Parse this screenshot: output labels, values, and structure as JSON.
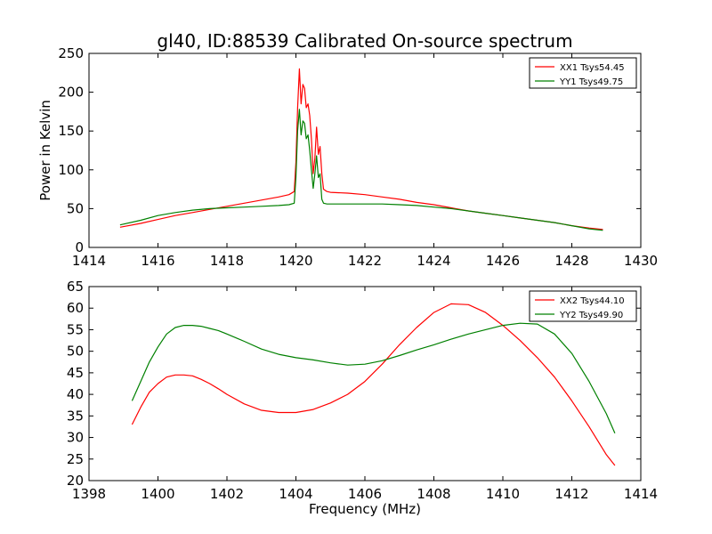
{
  "figure": {
    "title": "gl40, ID:88539 Calibrated On-source spectrum"
  },
  "colors": {
    "xx": "#ff0000",
    "yy": "#008000"
  },
  "chart_data": [
    {
      "type": "line",
      "title": "gl40, ID:88539 Calibrated On-source spectrum",
      "xlabel": "",
      "ylabel": "Power in Kelvin",
      "xlim": [
        1414,
        1430
      ],
      "ylim": [
        0,
        250
      ],
      "xticks": [
        1414,
        1416,
        1418,
        1420,
        1422,
        1424,
        1426,
        1428,
        1430
      ],
      "yticks": [
        0,
        50,
        100,
        150,
        200,
        250
      ],
      "grid": false,
      "legend": "top-right",
      "series": [
        {
          "name": "XX1 Tsys54.45",
          "color": "#ff0000",
          "x": [
            1414.9,
            1415.5,
            1416.0,
            1416.5,
            1417.0,
            1417.5,
            1418.0,
            1418.5,
            1419.0,
            1419.5,
            1419.8,
            1419.95,
            1420.0,
            1420.05,
            1420.1,
            1420.15,
            1420.2,
            1420.25,
            1420.3,
            1420.35,
            1420.4,
            1420.45,
            1420.5,
            1420.55,
            1420.6,
            1420.65,
            1420.7,
            1420.75,
            1420.8,
            1420.9,
            1421.0,
            1421.5,
            1422.0,
            1422.5,
            1423.0,
            1423.5,
            1424.0,
            1424.5,
            1425.0,
            1425.5,
            1426.0,
            1426.5,
            1427.0,
            1427.5,
            1428.0,
            1428.5,
            1428.9
          ],
          "y": [
            26,
            31,
            36,
            41,
            45,
            49,
            53,
            57,
            61,
            65,
            68,
            72,
            110,
            180,
            230,
            185,
            210,
            205,
            180,
            185,
            170,
            140,
            95,
            115,
            155,
            120,
            130,
            95,
            75,
            72,
            71,
            70,
            68,
            65,
            62,
            58,
            55,
            51,
            47,
            44,
            41,
            38,
            35,
            32,
            28,
            25,
            23
          ]
        },
        {
          "name": "YY1 Tsys49.75",
          "color": "#008000",
          "x": [
            1414.9,
            1415.5,
            1416.0,
            1416.5,
            1417.0,
            1417.5,
            1418.0,
            1418.5,
            1419.0,
            1419.5,
            1419.8,
            1419.95,
            1420.0,
            1420.05,
            1420.1,
            1420.15,
            1420.2,
            1420.25,
            1420.3,
            1420.35,
            1420.4,
            1420.45,
            1420.5,
            1420.55,
            1420.6,
            1420.65,
            1420.7,
            1420.75,
            1420.8,
            1420.9,
            1421.0,
            1421.5,
            1422.0,
            1422.5,
            1423.0,
            1423.5,
            1424.0,
            1424.5,
            1425.0,
            1425.5,
            1426.0,
            1426.5,
            1427.0,
            1427.5,
            1428.0,
            1428.5,
            1428.9
          ],
          "y": [
            29,
            35,
            41,
            45,
            48,
            50,
            51,
            52,
            53,
            54,
            55,
            57,
            90,
            150,
            178,
            145,
            163,
            160,
            140,
            145,
            125,
            100,
            76,
            95,
            118,
            90,
            95,
            62,
            57,
            56,
            56,
            56,
            56,
            56,
            55,
            54,
            52,
            50,
            47,
            44,
            41,
            38,
            35,
            32,
            28,
            24,
            22
          ]
        }
      ]
    },
    {
      "type": "line",
      "title": "",
      "xlabel": "Frequency (MHz)",
      "ylabel": "",
      "xlim": [
        1398,
        1414
      ],
      "ylim": [
        20,
        65
      ],
      "xticks": [
        1398,
        1400,
        1402,
        1404,
        1406,
        1408,
        1410,
        1412,
        1414
      ],
      "yticks": [
        20,
        25,
        30,
        35,
        40,
        45,
        50,
        55,
        60,
        65
      ],
      "grid": false,
      "legend": "top-right",
      "series": [
        {
          "name": "XX2 Tsys44.10",
          "color": "#ff0000",
          "x": [
            1399.25,
            1399.5,
            1399.75,
            1400.0,
            1400.25,
            1400.5,
            1400.75,
            1401.0,
            1401.25,
            1401.5,
            1401.75,
            1402.0,
            1402.5,
            1403.0,
            1403.5,
            1404.0,
            1404.5,
            1405.0,
            1405.5,
            1406.0,
            1406.5,
            1407.0,
            1407.5,
            1408.0,
            1408.5,
            1409.0,
            1409.5,
            1410.0,
            1410.5,
            1411.0,
            1411.5,
            1412.0,
            1412.5,
            1413.0,
            1413.25
          ],
          "y": [
            33,
            37,
            40.5,
            42.5,
            44,
            44.5,
            44.5,
            44.3,
            43.5,
            42.5,
            41.3,
            40,
            37.8,
            36.3,
            35.8,
            35.8,
            36.5,
            38,
            40,
            43,
            47,
            51.5,
            55.5,
            59,
            61,
            60.8,
            59,
            56,
            52.5,
            48.5,
            44,
            38.5,
            32.5,
            26,
            23.5
          ]
        },
        {
          "name": "YY2 Tsys49.90",
          "color": "#008000",
          "x": [
            1399.25,
            1399.5,
            1399.75,
            1400.0,
            1400.25,
            1400.5,
            1400.75,
            1401.0,
            1401.25,
            1401.5,
            1401.75,
            1402.0,
            1402.5,
            1403.0,
            1403.5,
            1404.0,
            1404.5,
            1405.0,
            1405.5,
            1406.0,
            1406.5,
            1407.0,
            1407.5,
            1408.0,
            1408.5,
            1409.0,
            1409.5,
            1410.0,
            1410.5,
            1411.0,
            1411.5,
            1412.0,
            1412.5,
            1413.0,
            1413.25
          ],
          "y": [
            38.5,
            43,
            47.5,
            51,
            54,
            55.5,
            56,
            56,
            55.8,
            55.3,
            54.8,
            54,
            52.3,
            50.5,
            49.3,
            48.5,
            48,
            47.3,
            46.8,
            47,
            47.8,
            49,
            50.3,
            51.5,
            52.8,
            54,
            55,
            56,
            56.5,
            56.3,
            54,
            49.5,
            43,
            35.5,
            31
          ]
        }
      ]
    }
  ]
}
